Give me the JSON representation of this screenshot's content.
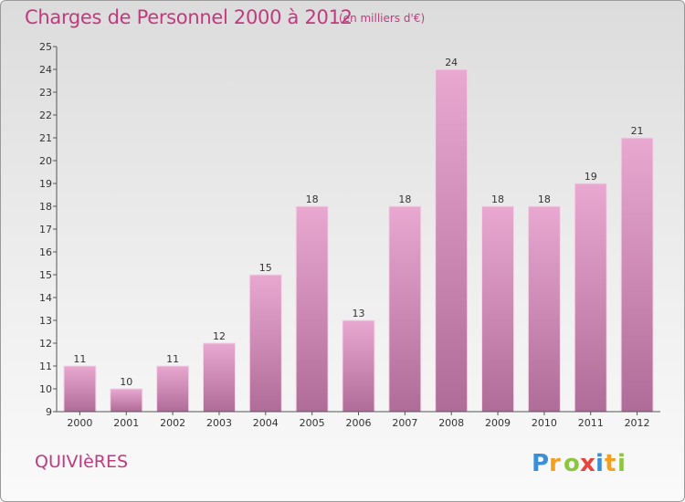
{
  "header": {
    "title": "Charges de Personnel 2000 à 2012",
    "subtitle": "(en milliers d'€)"
  },
  "footer": {
    "commune": "QUIVIèRES",
    "logo_text": "Proxiti"
  },
  "colors": {
    "bar_light": "#e8a8d0",
    "bar_dark": "#b06c98",
    "accent": "#c03a7e"
  },
  "chart_data": {
    "type": "bar",
    "title": "Charges de Personnel 2000 à 2012",
    "subtitle": "(en milliers d'€)",
    "categories": [
      "2000",
      "2001",
      "2002",
      "2003",
      "2004",
      "2005",
      "2006",
      "2007",
      "2008",
      "2009",
      "2010",
      "2011",
      "2012"
    ],
    "values": [
      11,
      10,
      11,
      12,
      15,
      18,
      13,
      18,
      24,
      18,
      18,
      19,
      21
    ],
    "ylim": [
      9,
      25
    ],
    "yticks": [
      9,
      10,
      11,
      12,
      13,
      14,
      15,
      16,
      17,
      18,
      19,
      20,
      21,
      22,
      23,
      24,
      25
    ],
    "ytick_labels": [
      "9",
      "10",
      "11",
      "12",
      "13",
      "14",
      "15",
      "16",
      "17",
      "18",
      "19",
      "20",
      "21",
      "22",
      "23",
      "24",
      "25"
    ],
    "grid": false,
    "xlabel": "",
    "ylabel": ""
  }
}
